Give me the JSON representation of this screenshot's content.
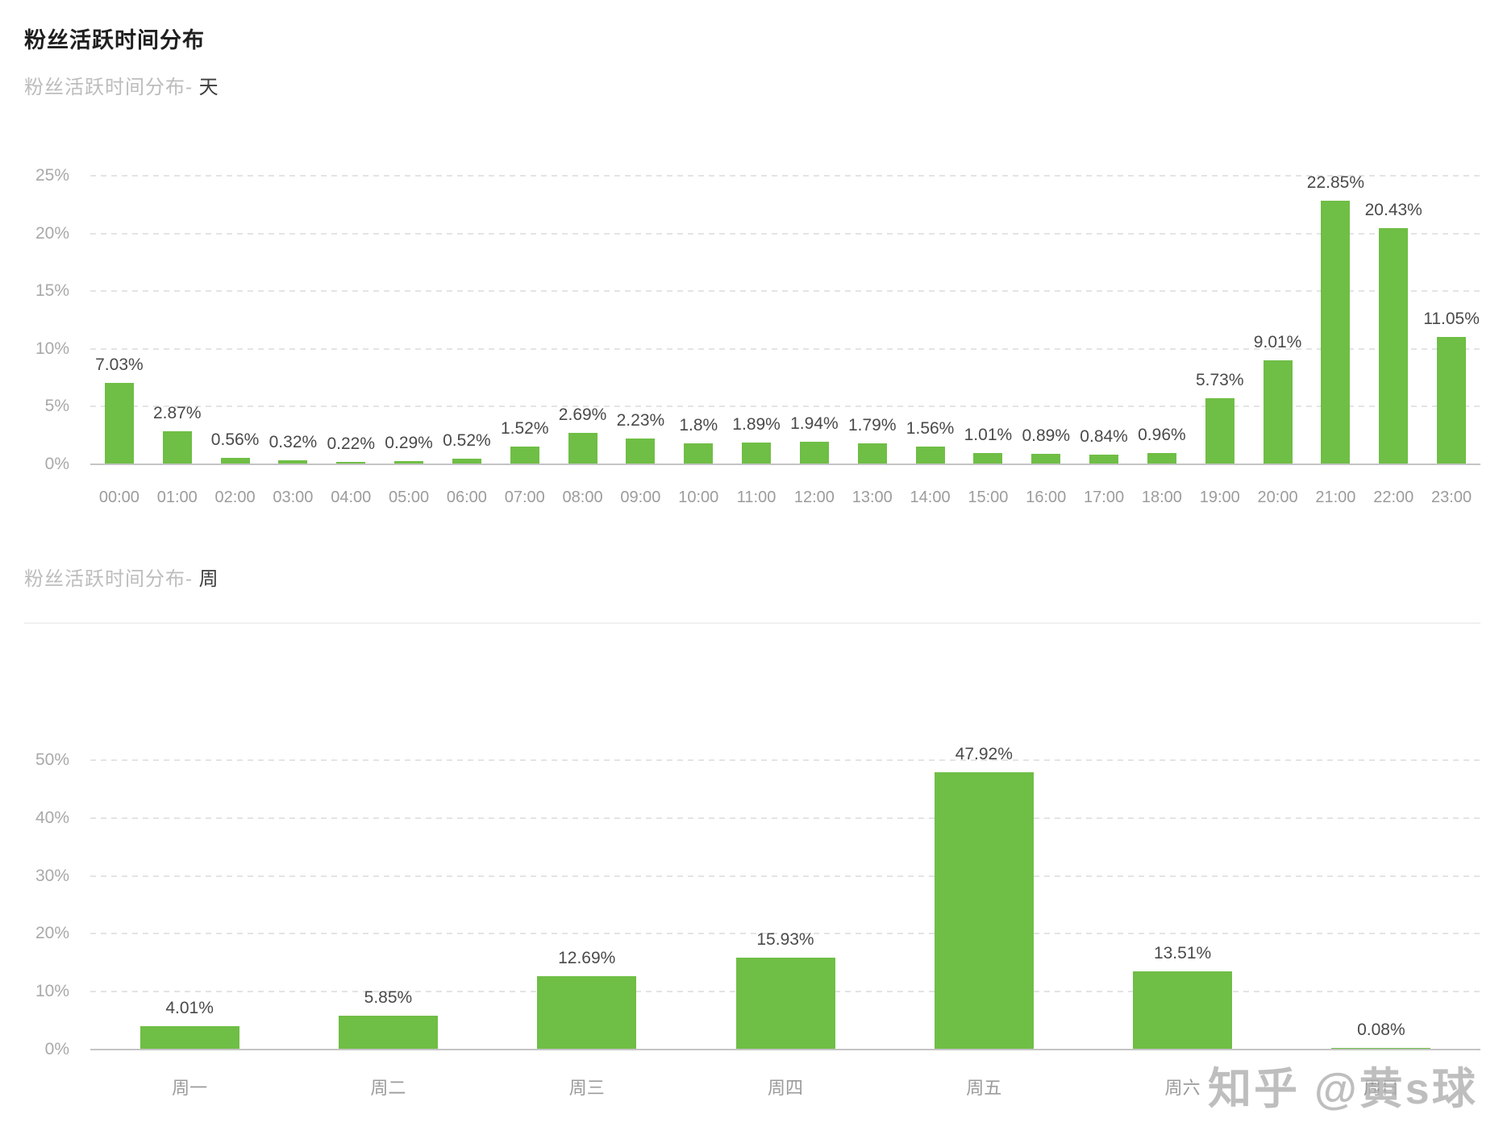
{
  "page": {
    "title": "粉丝活跃时间分布"
  },
  "watermark": {
    "text": "知乎 @黄s球"
  },
  "colors": {
    "bar_green": "#6fbe45",
    "grid_line": "#e4e4e4",
    "axis_line": "#c4c4c4",
    "value_label": "#4a4a4a",
    "tick_label": "#a9a9a9"
  },
  "chart_data": [
    {
      "type": "bar",
      "title_prefix": "粉丝活跃时间分布-",
      "title_highlight": " 天",
      "categories": [
        "00:00",
        "01:00",
        "02:00",
        "03:00",
        "04:00",
        "05:00",
        "06:00",
        "07:00",
        "08:00",
        "09:00",
        "10:00",
        "11:00",
        "12:00",
        "13:00",
        "14:00",
        "15:00",
        "16:00",
        "17:00",
        "18:00",
        "19:00",
        "20:00",
        "21:00",
        "22:00",
        "23:00"
      ],
      "values": [
        7.03,
        2.87,
        0.56,
        0.32,
        0.22,
        0.29,
        0.52,
        1.52,
        2.69,
        2.23,
        1.8,
        1.89,
        1.94,
        1.79,
        1.56,
        1.01,
        0.89,
        0.84,
        0.96,
        5.73,
        9.01,
        22.85,
        20.43,
        11.05
      ],
      "value_labels": [
        "7.03%",
        "2.87%",
        "0.56%",
        "0.32%",
        "0.22%",
        "0.29%",
        "0.52%",
        "1.52%",
        "2.69%",
        "2.23%",
        "1.8%",
        "1.89%",
        "1.94%",
        "1.79%",
        "1.56%",
        "1.01%",
        "0.89%",
        "0.84%",
        "0.96%",
        "5.73%",
        "9.01%",
        "22.85%",
        "20.43%",
        "11.05%"
      ],
      "ymax": 25,
      "yticks": [
        25,
        20,
        15,
        10,
        5,
        0
      ],
      "ytick_labels": [
        "25%",
        "20%",
        "15%",
        "10%",
        "5%",
        "0%"
      ],
      "grid": true,
      "legend": "none",
      "bar_color": "#6fbe45"
    },
    {
      "type": "bar",
      "title_prefix": "粉丝活跃时间分布-",
      "title_highlight": " 周",
      "categories": [
        "周一",
        "周二",
        "周三",
        "周四",
        "周五",
        "周六",
        "周日"
      ],
      "values": [
        4.01,
        5.85,
        12.69,
        15.93,
        47.92,
        13.51,
        0.08
      ],
      "value_labels": [
        "4.01%",
        "5.85%",
        "12.69%",
        "15.93%",
        "47.92%",
        "13.51%",
        "0.08%"
      ],
      "ymax": 50,
      "yticks": [
        50,
        40,
        30,
        20,
        10,
        0
      ],
      "ytick_labels": [
        "50%",
        "40%",
        "30%",
        "20%",
        "10%",
        "0%"
      ],
      "grid": true,
      "legend": "none",
      "bar_color": "#6fbe45"
    }
  ]
}
